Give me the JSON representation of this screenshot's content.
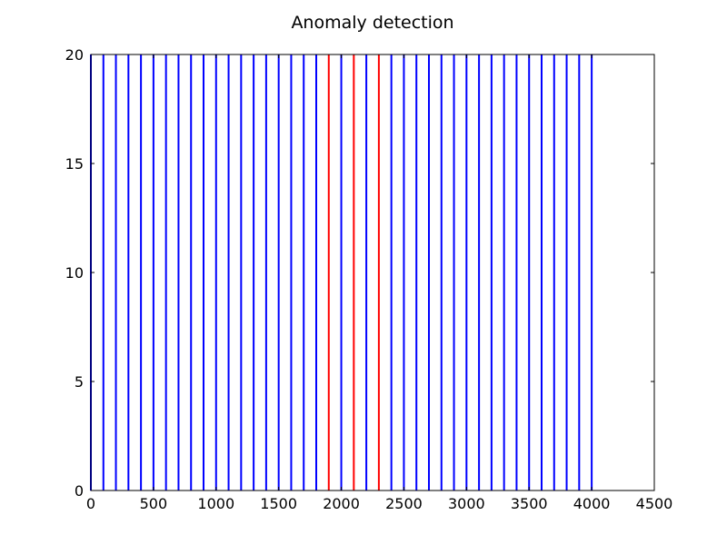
{
  "chart_data": {
    "type": "bar",
    "title": "Anomaly detection",
    "xlabel": "",
    "ylabel": "",
    "xlim": [
      0,
      4500
    ],
    "ylim": [
      0,
      20
    ],
    "xticks": [
      0,
      500,
      1000,
      1500,
      2000,
      2500,
      3000,
      3500,
      4000,
      4500
    ],
    "yticks": [
      0,
      5,
      10,
      15,
      20
    ],
    "grid": false,
    "bar_height": 20,
    "series": [
      {
        "color": "#0000ff",
        "x": [
          0,
          100,
          200,
          300,
          400,
          500,
          600,
          700,
          800,
          900,
          1000,
          1100,
          1200,
          1300,
          1400,
          1500,
          1600,
          1700,
          1800,
          2000,
          2200,
          2400,
          2500,
          2600,
          2700,
          2800,
          2900,
          3000,
          3100,
          3200,
          3300,
          3400,
          3500,
          3600,
          3700,
          3800,
          3900,
          4000
        ]
      },
      {
        "color": "#ff0000",
        "x": [
          1900,
          2100,
          2300
        ]
      }
    ]
  }
}
